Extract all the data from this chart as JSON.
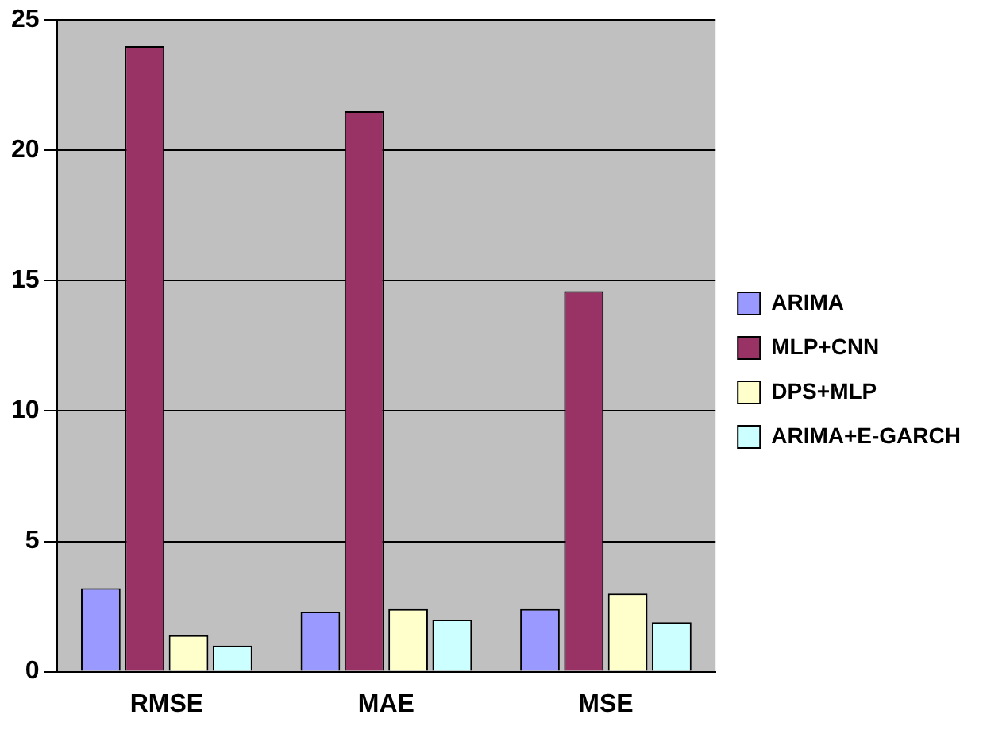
{
  "chart_data": {
    "type": "bar",
    "categories": [
      "RMSE",
      "MAE",
      "MSE"
    ],
    "series": [
      {
        "name": "ARIMA",
        "color": "#9999ff",
        "values": [
          3.2,
          2.3,
          2.4
        ]
      },
      {
        "name": "MLP+CNN",
        "color": "#993366",
        "values": [
          24,
          21.5,
          14.6
        ]
      },
      {
        "name": "DPS+MLP",
        "color": "#ffffcc",
        "values": [
          1.4,
          2.4,
          3.0
        ]
      },
      {
        "name": "ARIMA+E-GARCH",
        "color": "#ccffff",
        "values": [
          1.0,
          2.0,
          1.9
        ]
      }
    ],
    "ylim": [
      0,
      25
    ],
    "yticks": [
      0,
      5,
      10,
      15,
      20,
      25
    ],
    "grid": "y",
    "legend": "right"
  }
}
